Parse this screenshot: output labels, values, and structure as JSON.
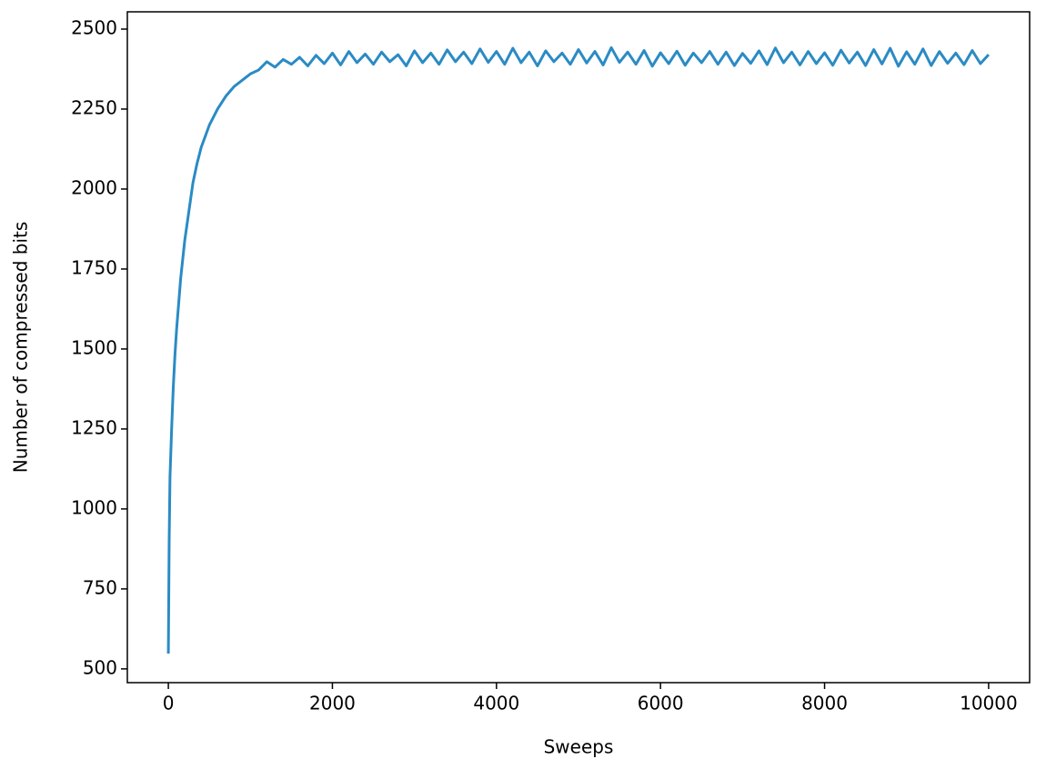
{
  "chart_data": {
    "type": "line",
    "xlabel": "Sweeps",
    "ylabel": "Number of compressed bits",
    "xlim": [
      -500,
      10500
    ],
    "ylim": [
      457,
      2554
    ],
    "xticks": [
      0,
      2000,
      4000,
      6000,
      8000,
      10000
    ],
    "yticks": [
      500,
      750,
      1000,
      1250,
      1500,
      1750,
      2000,
      2250,
      2500
    ],
    "series": [
      {
        "color": "#2a8bc4",
        "x": [
          0,
          10,
          20,
          40,
          60,
          80,
          100,
          150,
          200,
          250,
          300,
          350,
          400,
          500,
          600,
          700,
          800,
          900,
          1000,
          1100,
          1200,
          1300,
          1400,
          1500,
          1600,
          1700,
          1800,
          1900,
          2000,
          2100,
          2200,
          2300,
          2400,
          2500,
          2600,
          2700,
          2800,
          2900,
          3000,
          3100,
          3200,
          3300,
          3400,
          3500,
          3600,
          3700,
          3800,
          3900,
          4000,
          4100,
          4200,
          4300,
          4400,
          4500,
          4600,
          4700,
          4800,
          4900,
          5000,
          5100,
          5200,
          5300,
          5400,
          5500,
          5600,
          5700,
          5800,
          5900,
          6000,
          6100,
          6200,
          6300,
          6400,
          6500,
          6600,
          6700,
          6800,
          6900,
          7000,
          7100,
          7200,
          7300,
          7400,
          7500,
          7600,
          7700,
          7800,
          7900,
          8000,
          8100,
          8200,
          8300,
          8400,
          8500,
          8600,
          8700,
          8800,
          8900,
          9000,
          9100,
          9200,
          9300,
          9400,
          9500,
          9600,
          9700,
          9800,
          9900,
          10000
        ],
        "values": [
          548,
          900,
          1100,
          1250,
          1380,
          1480,
          1560,
          1720,
          1840,
          1930,
          2020,
          2080,
          2130,
          2200,
          2250,
          2290,
          2320,
          2340,
          2360,
          2372,
          2398,
          2381,
          2405,
          2390,
          2412,
          2385,
          2418,
          2392,
          2425,
          2388,
          2430,
          2395,
          2422,
          2390,
          2428,
          2398,
          2420,
          2385,
          2432,
          2395,
          2425,
          2390,
          2435,
          2398,
          2428,
          2392,
          2438,
          2396,
          2430,
          2390,
          2440,
          2395,
          2428,
          2385,
          2432,
          2398,
          2425,
          2390,
          2436,
          2394,
          2430,
          2388,
          2442,
          2396,
          2428,
          2390,
          2433,
          2384,
          2426,
          2392,
          2431,
          2387,
          2425,
          2395,
          2430,
          2390,
          2428,
          2386,
          2424,
          2393,
          2432,
          2389,
          2441,
          2395,
          2428,
          2388,
          2430,
          2392,
          2426,
          2387,
          2434,
          2394,
          2428,
          2386,
          2436,
          2391,
          2440,
          2384,
          2429,
          2390,
          2438,
          2386,
          2430,
          2393,
          2425,
          2389,
          2433,
          2392,
          2420
        ]
      }
    ]
  }
}
